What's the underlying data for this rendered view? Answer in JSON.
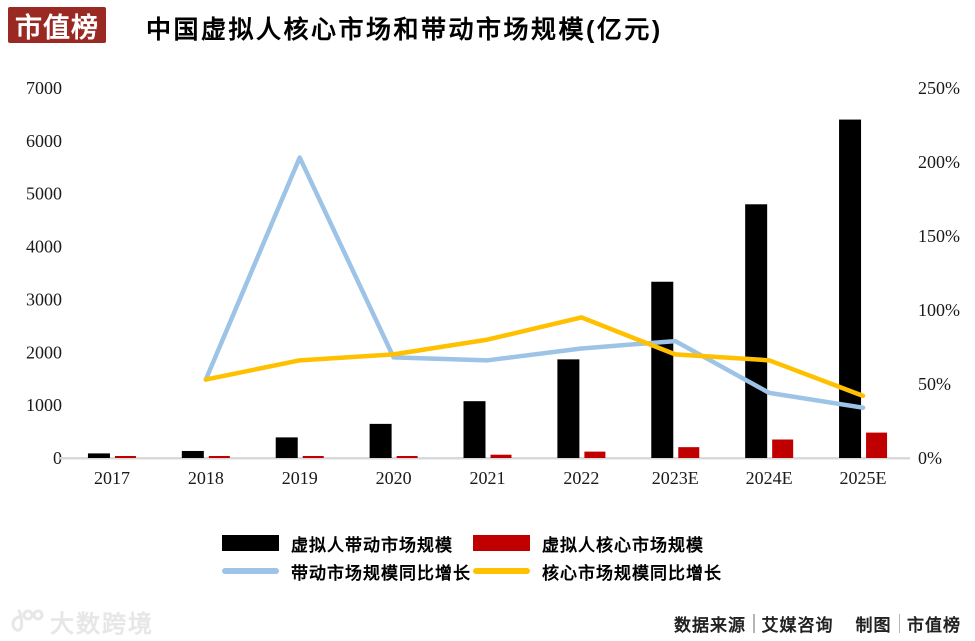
{
  "logo": {
    "text": "市值榜",
    "bg_color": "#9A2923"
  },
  "title": "中国虚拟人核心市场和带动市场规模(亿元)",
  "chart_data": {
    "type": "bar+line combo",
    "title": "中国虚拟人核心市场和带动市场规模(亿元)",
    "unit": "亿元",
    "categories": [
      "2017",
      "2018",
      "2019",
      "2020",
      "2021",
      "2022",
      "2023E",
      "2024E",
      "2025E"
    ],
    "series": [
      {
        "name": "虚拟人带动市场规模",
        "type": "bar",
        "axis": "left",
        "color": "#000000",
        "values": [
          87,
          133,
          390,
          645.6,
          1074.9,
          1866.1,
          3334.7,
          4800,
          6402.7
        ]
      },
      {
        "name": "虚拟人核心市场规模",
        "type": "bar",
        "axis": "left",
        "color": "#C00000",
        "values": [
          7,
          11,
          20,
          34.5,
          62.2,
          120.8,
          205.2,
          350,
          480.6
        ]
      },
      {
        "name": "带动市场规模同比增长",
        "type": "line",
        "axis": "right",
        "color": "#9DC3E6",
        "values": [
          null,
          53,
          203,
          68,
          66,
          74,
          79,
          44,
          34
        ]
      },
      {
        "name": "核心市场规模同比增长",
        "type": "line",
        "axis": "right",
        "color": "#FFC000",
        "values": [
          null,
          53,
          66,
          70,
          80,
          95,
          70,
          66,
          42
        ]
      }
    ],
    "left_axis": {
      "min": 0,
      "max": 7000,
      "step": 1000,
      "tick_labels": [
        "0",
        "1000",
        "2000",
        "3000",
        "4000",
        "5000",
        "6000",
        "7000"
      ]
    },
    "right_axis": {
      "min": 0,
      "max": 250,
      "step": 50,
      "tick_labels": [
        "0%",
        "50%",
        "100%",
        "150%",
        "200%",
        "250%"
      ]
    },
    "grid": "off",
    "legend_position": "bottom",
    "baseline_color": "#D9D9D9"
  },
  "legend": {
    "items": [
      {
        "label": "虚拟人带动市场规模",
        "color": "#000000",
        "shape": "bar"
      },
      {
        "label": "虚拟人核心市场规模",
        "color": "#C00000",
        "shape": "bar"
      },
      {
        "label": "带动市场规模同比增长",
        "color": "#9DC3E6",
        "shape": "line"
      },
      {
        "label": "核心市场规模同比增长",
        "color": "#FFC000",
        "shape": "line"
      }
    ]
  },
  "footer": {
    "watermark": "大数跨境",
    "source_label": "数据来源",
    "source_value": "艾媒咨询",
    "chart_by_label": "制图",
    "chart_by_value": "市值榜"
  }
}
